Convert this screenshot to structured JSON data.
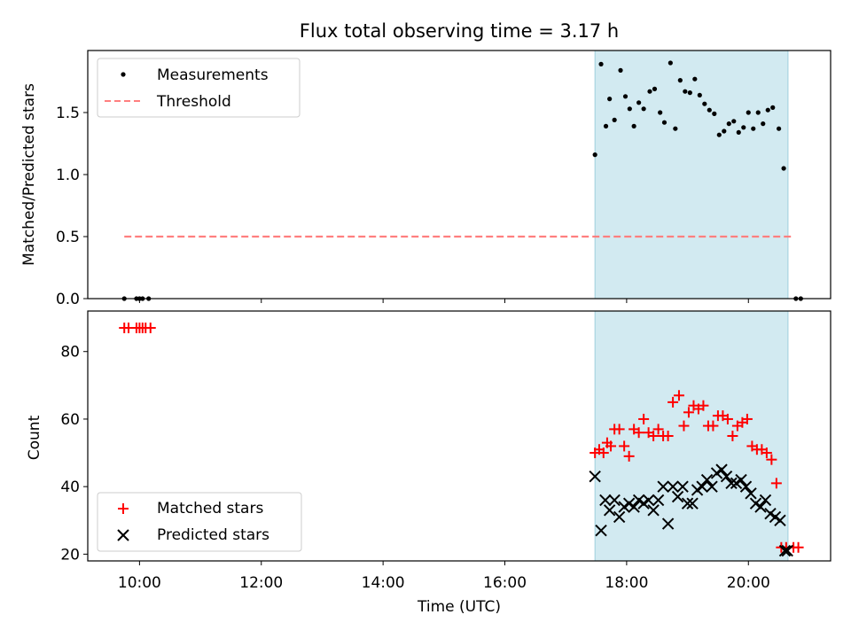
{
  "chart_data": [
    {
      "type": "scatter",
      "title": "Flux total observing time = 3.17 h",
      "xlabel": "",
      "ylabel": "Matched/Predicted stars",
      "xlim": [
        9.15,
        21.35
      ],
      "ylim": [
        0,
        2.0
      ],
      "yticks": [
        0.0,
        0.5,
        1.0,
        1.5
      ],
      "ytick_labels": [
        "0.0",
        "0.5",
        "1.0",
        "1.5"
      ],
      "xticks": [
        10,
        12,
        14,
        16,
        18,
        20
      ],
      "shaded_span": [
        17.48,
        20.65
      ],
      "shade_color": "#add8e6",
      "legend_position": "upper-left",
      "legend": [
        {
          "label": "Measurements",
          "marker": "dot",
          "color": "#000000"
        },
        {
          "label": "Threshold",
          "marker": "dashed-line",
          "color": "#ff7f7f"
        }
      ],
      "threshold": {
        "y": 0.5,
        "x_start": 9.75,
        "x_end": 20.75,
        "color": "#ff7f7f"
      },
      "series": [
        {
          "name": "Measurements",
          "color": "#000000",
          "x": [
            9.75,
            9.95,
            10.0,
            10.05,
            10.15,
            17.48,
            17.58,
            17.66,
            17.72,
            17.8,
            17.9,
            17.98,
            18.05,
            18.12,
            18.2,
            18.28,
            18.38,
            18.46,
            18.55,
            18.62,
            18.72,
            18.8,
            18.88,
            18.96,
            19.04,
            19.12,
            19.2,
            19.28,
            19.36,
            19.44,
            19.52,
            19.6,
            19.68,
            19.76,
            19.84,
            19.92,
            20.0,
            20.08,
            20.16,
            20.24,
            20.32,
            20.4,
            20.5,
            20.58,
            20.78,
            20.86
          ],
          "y": [
            0,
            0,
            0,
            0,
            0,
            1.16,
            1.89,
            1.39,
            1.61,
            1.44,
            1.84,
            1.63,
            1.53,
            1.39,
            1.58,
            1.53,
            1.67,
            1.69,
            1.5,
            1.42,
            1.9,
            1.37,
            1.76,
            1.67,
            1.66,
            1.77,
            1.64,
            1.57,
            1.52,
            1.49,
            1.32,
            1.35,
            1.41,
            1.43,
            1.34,
            1.38,
            1.5,
            1.37,
            1.5,
            1.41,
            1.52,
            1.54,
            1.37,
            1.05,
            0,
            0
          ]
        }
      ]
    },
    {
      "type": "scatter",
      "title": "",
      "xlabel": "Time (UTC)",
      "ylabel": "Count",
      "xlim": [
        9.15,
        21.35
      ],
      "ylim": [
        18,
        92
      ],
      "yticks": [
        20,
        40,
        60,
        80
      ],
      "ytick_labels": [
        "20",
        "40",
        "60",
        "80"
      ],
      "xticks": [
        10,
        12,
        14,
        16,
        18,
        20
      ],
      "xtick_labels": [
        "10:00",
        "12:00",
        "14:00",
        "16:00",
        "18:00",
        "20:00"
      ],
      "shaded_span": [
        17.48,
        20.65
      ],
      "shade_color": "#add8e6",
      "legend_position": "lower-left",
      "legend": [
        {
          "label": "Matched stars",
          "marker": "plus",
          "color": "#ff0000"
        },
        {
          "label": "Predicted stars",
          "marker": "x",
          "color": "#000000"
        }
      ],
      "series": [
        {
          "name": "Matched stars",
          "marker": "plus",
          "color": "#ff0000",
          "x": [
            9.75,
            9.82,
            9.95,
            10.0,
            10.05,
            10.1,
            10.18,
            17.48,
            17.55,
            17.62,
            17.68,
            17.74,
            17.8,
            17.88,
            17.96,
            18.04,
            18.12,
            18.2,
            18.28,
            18.36,
            18.44,
            18.52,
            18.6,
            18.68,
            18.76,
            18.86,
            18.94,
            19.02,
            19.1,
            19.18,
            19.26,
            19.34,
            19.42,
            19.5,
            19.58,
            19.66,
            19.74,
            19.82,
            19.9,
            19.98,
            20.06,
            20.14,
            20.22,
            20.3,
            20.38,
            20.46,
            20.54,
            20.62,
            20.74,
            20.82
          ],
          "y": [
            87,
            87,
            87,
            87,
            87,
            87,
            87,
            50,
            51,
            50,
            53,
            52,
            57,
            57,
            52,
            49,
            57,
            56,
            60,
            56,
            55,
            57,
            55,
            55,
            65,
            67,
            58,
            62,
            64,
            63,
            64,
            58,
            58,
            61,
            61,
            60,
            55,
            58,
            59,
            60,
            52,
            51,
            51,
            50,
            48,
            41,
            22,
            22,
            22,
            22
          ]
        },
        {
          "name": "Predicted stars",
          "marker": "x",
          "color": "#000000",
          "x": [
            17.48,
            17.58,
            17.65,
            17.72,
            17.8,
            17.88,
            17.96,
            18.04,
            18.12,
            18.2,
            18.28,
            18.36,
            18.44,
            18.52,
            18.6,
            18.68,
            18.76,
            18.84,
            18.92,
            19.0,
            19.08,
            19.16,
            19.24,
            19.32,
            19.4,
            19.48,
            19.56,
            19.64,
            19.72,
            19.8,
            19.88,
            19.96,
            20.04,
            20.12,
            20.2,
            20.28,
            20.36,
            20.44,
            20.52,
            20.6,
            20.64
          ],
          "y": [
            43,
            27,
            36,
            33,
            36,
            31,
            34,
            35,
            34,
            36,
            35,
            36,
            33,
            36,
            40,
            29,
            40,
            37,
            40,
            35,
            35,
            39,
            40,
            42,
            40,
            44,
            45,
            43,
            41,
            41,
            42,
            40,
            38,
            35,
            34,
            36,
            32,
            31,
            30,
            21,
            21
          ]
        }
      ]
    }
  ]
}
